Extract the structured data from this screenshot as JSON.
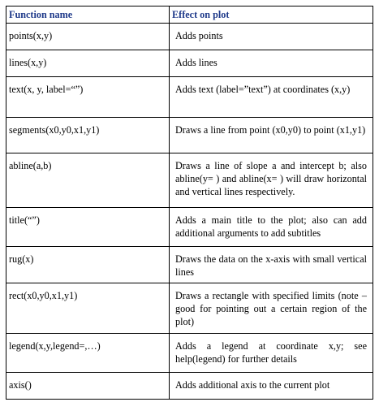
{
  "header": {
    "col1": "Function name",
    "col2": "Effect on plot"
  },
  "rows": [
    {
      "fn": "points(x,y)",
      "effect": "Adds points"
    },
    {
      "fn": "lines(x,y)",
      "effect": "Adds lines"
    },
    {
      "fn": "text(x, y, label=“”)",
      "effect": "Adds text (label=”text”) at coordinates (x,y)"
    },
    {
      "fn": "segments(x0,y0,x1,y1)",
      "effect": "Draws a line from point (x0,y0) to point (x1,y1)"
    },
    {
      "fn": "abline(a,b)",
      "effect": "Draws a line of slope a and intercept b; also abline(y= ) and abline(x= ) will draw horizontal and vertical lines respectively."
    },
    {
      "fn": "title(“”)",
      "effect": "Adds a main title to the plot; also can add additional arguments to add subtitles"
    },
    {
      "fn": "rug(x)",
      "effect": "Draws the data on the x-axis with small vertical lines"
    },
    {
      "fn": "rect(x0,y0,x1,y1)",
      "effect": "Draws a rectangle with specified limits (note –good for pointing out a certain region of the plot)"
    },
    {
      "fn": "legend(x,y,legend=,…)",
      "effect": "Adds a legend at coordinate x,y; see help(legend) for further details"
    },
    {
      "fn": "axis()",
      "effect": "Adds additional axis to the current plot"
    }
  ],
  "colors": {
    "header_text": "#1f3a8a",
    "border": "#000000"
  }
}
